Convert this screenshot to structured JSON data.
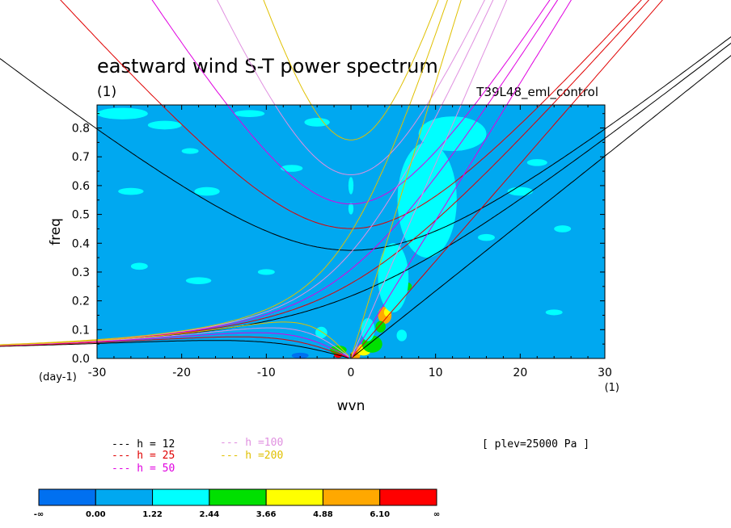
{
  "chart_data": {
    "type": "heatmap",
    "title": "eastward wind S-T power spectrum",
    "subtitle_left": "(1)",
    "subtitle_right": "T39L48_eml_control",
    "xlabel": "wvn",
    "ylabel": "freq",
    "y_unit": "(day-1)",
    "x_unit": "(1)",
    "annotation": "[ plev=25000 Pa ]",
    "xlim": [
      -30,
      30
    ],
    "ylim": [
      0,
      0.88
    ],
    "x_ticks": [
      -30,
      -20,
      -10,
      0,
      10,
      20,
      30
    ],
    "x_tick_labels": [
      "-30",
      "-20",
      "-10",
      "0",
      "10",
      "20",
      "30"
    ],
    "y_ticks": [
      0,
      0.1,
      0.2,
      0.3,
      0.4,
      0.5,
      0.6,
      0.7,
      0.8
    ],
    "y_tick_labels": [
      "0.0",
      "0.1",
      "0.2",
      "0.3",
      "0.4",
      "0.5",
      "0.6",
      "0.7",
      "0.8"
    ],
    "background_color": "#00a8f0",
    "colorbar": {
      "labels": [
        "-∞",
        "0.00",
        "1.22",
        "2.44",
        "3.66",
        "4.88",
        "6.10",
        "∞"
      ],
      "colors": [
        "#0070f0",
        "#00a8f0",
        "#00ffff",
        "#00e000",
        "#ffff00",
        "#ffa800",
        "#ff0000"
      ]
    },
    "series": [
      {
        "name": "h = 12",
        "label": "--- h = 12",
        "color": "#000000",
        "equivalent_depth": 12
      },
      {
        "name": "h = 25",
        "label": "--- h = 25",
        "color": "#e00000",
        "equivalent_depth": 25
      },
      {
        "name": "h = 50",
        "label": "--- h = 50",
        "color": "#e000e0",
        "equivalent_depth": 50
      },
      {
        "name": "h =100",
        "label": "--- h =100",
        "color": "#e090e0",
        "equivalent_depth": 100
      },
      {
        "name": "h =200",
        "label": "--- h =200",
        "color": "#e0c000",
        "equivalent_depth": 200
      }
    ],
    "field_patches": [
      {
        "x": 0.5,
        "y": 0.01,
        "rx": 0.6,
        "ry": 0.015,
        "level": 5
      },
      {
        "x": -1.5,
        "y": 0.012,
        "rx": 0.5,
        "ry": 0.01,
        "level": 6
      },
      {
        "x": 4.0,
        "y": 0.15,
        "rx": 0.8,
        "ry": 0.03,
        "level": 5
      },
      {
        "x": 4.3,
        "y": 0.16,
        "rx": 0.4,
        "ry": 0.015,
        "level": 4
      },
      {
        "x": 1.5,
        "y": 0.03,
        "rx": 0.9,
        "ry": 0.02,
        "level": 4
      },
      {
        "x": 6.5,
        "y": 0.25,
        "rx": 0.7,
        "ry": 0.015,
        "level": 3
      },
      {
        "x": 3.5,
        "y": 0.11,
        "rx": 0.6,
        "ry": 0.02,
        "level": 3
      },
      {
        "x": 2.5,
        "y": 0.05,
        "rx": 1.2,
        "ry": 0.03,
        "level": 3
      },
      {
        "x": -1.5,
        "y": 0.03,
        "rx": 1.0,
        "ry": 0.015,
        "level": 3
      },
      {
        "x": 5.2,
        "y": 0.2,
        "rx": 1.0,
        "ry": 0.02,
        "level": 3
      },
      {
        "x": -3.5,
        "y": 0.09,
        "rx": 0.7,
        "ry": 0.02,
        "level": 2
      },
      {
        "x": 5.0,
        "y": 0.28,
        "rx": 1.8,
        "ry": 0.12,
        "level": 2
      },
      {
        "x": 9.0,
        "y": 0.55,
        "rx": 3.5,
        "ry": 0.2,
        "level": 2
      },
      {
        "x": 12.0,
        "y": 0.78,
        "rx": 4.0,
        "ry": 0.06,
        "level": 2
      },
      {
        "x": -27.0,
        "y": 0.85,
        "rx": 3.0,
        "ry": 0.02,
        "level": 2
      },
      {
        "x": -22.0,
        "y": 0.81,
        "rx": 2.0,
        "ry": 0.015,
        "level": 2
      },
      {
        "x": -17.0,
        "y": 0.58,
        "rx": 1.5,
        "ry": 0.015,
        "level": 2
      },
      {
        "x": -26.0,
        "y": 0.58,
        "rx": 1.5,
        "ry": 0.012,
        "level": 2
      },
      {
        "x": -18.0,
        "y": 0.27,
        "rx": 1.5,
        "ry": 0.012,
        "level": 2
      },
      {
        "x": -25.0,
        "y": 0.32,
        "rx": 1.0,
        "ry": 0.012,
        "level": 2
      },
      {
        "x": 20.0,
        "y": 0.58,
        "rx": 1.5,
        "ry": 0.015,
        "level": 2
      },
      {
        "x": 22.0,
        "y": 0.68,
        "rx": 1.2,
        "ry": 0.012,
        "level": 2
      },
      {
        "x": 0.0,
        "y": 0.6,
        "rx": 0.3,
        "ry": 0.03,
        "level": 2
      },
      {
        "x": 0.0,
        "y": 0.52,
        "rx": 0.3,
        "ry": 0.02,
        "level": 2
      },
      {
        "x": -7.0,
        "y": 0.66,
        "rx": 1.3,
        "ry": 0.012,
        "level": 2
      },
      {
        "x": -4.0,
        "y": 0.82,
        "rx": 1.5,
        "ry": 0.015,
        "level": 2
      },
      {
        "x": 16.0,
        "y": 0.42,
        "rx": 1.0,
        "ry": 0.012,
        "level": 2
      },
      {
        "x": 25.0,
        "y": 0.45,
        "rx": 1.0,
        "ry": 0.012,
        "level": 2
      },
      {
        "x": -12.0,
        "y": 0.85,
        "rx": 1.8,
        "ry": 0.012,
        "level": 2
      },
      {
        "x": 24.0,
        "y": 0.16,
        "rx": 1.0,
        "ry": 0.01,
        "level": 2
      },
      {
        "x": -10.0,
        "y": 0.3,
        "rx": 1.0,
        "ry": 0.01,
        "level": 2
      },
      {
        "x": -19.0,
        "y": 0.72,
        "rx": 1.0,
        "ry": 0.01,
        "level": 2
      },
      {
        "x": 2.0,
        "y": 0.1,
        "rx": 0.8,
        "ry": 0.04,
        "level": 2
      },
      {
        "x": 6.0,
        "y": 0.08,
        "rx": 0.6,
        "ry": 0.02,
        "level": 2
      },
      {
        "x": -6.0,
        "y": 0.01,
        "rx": 1.0,
        "ry": 0.01,
        "level": 0
      }
    ]
  }
}
